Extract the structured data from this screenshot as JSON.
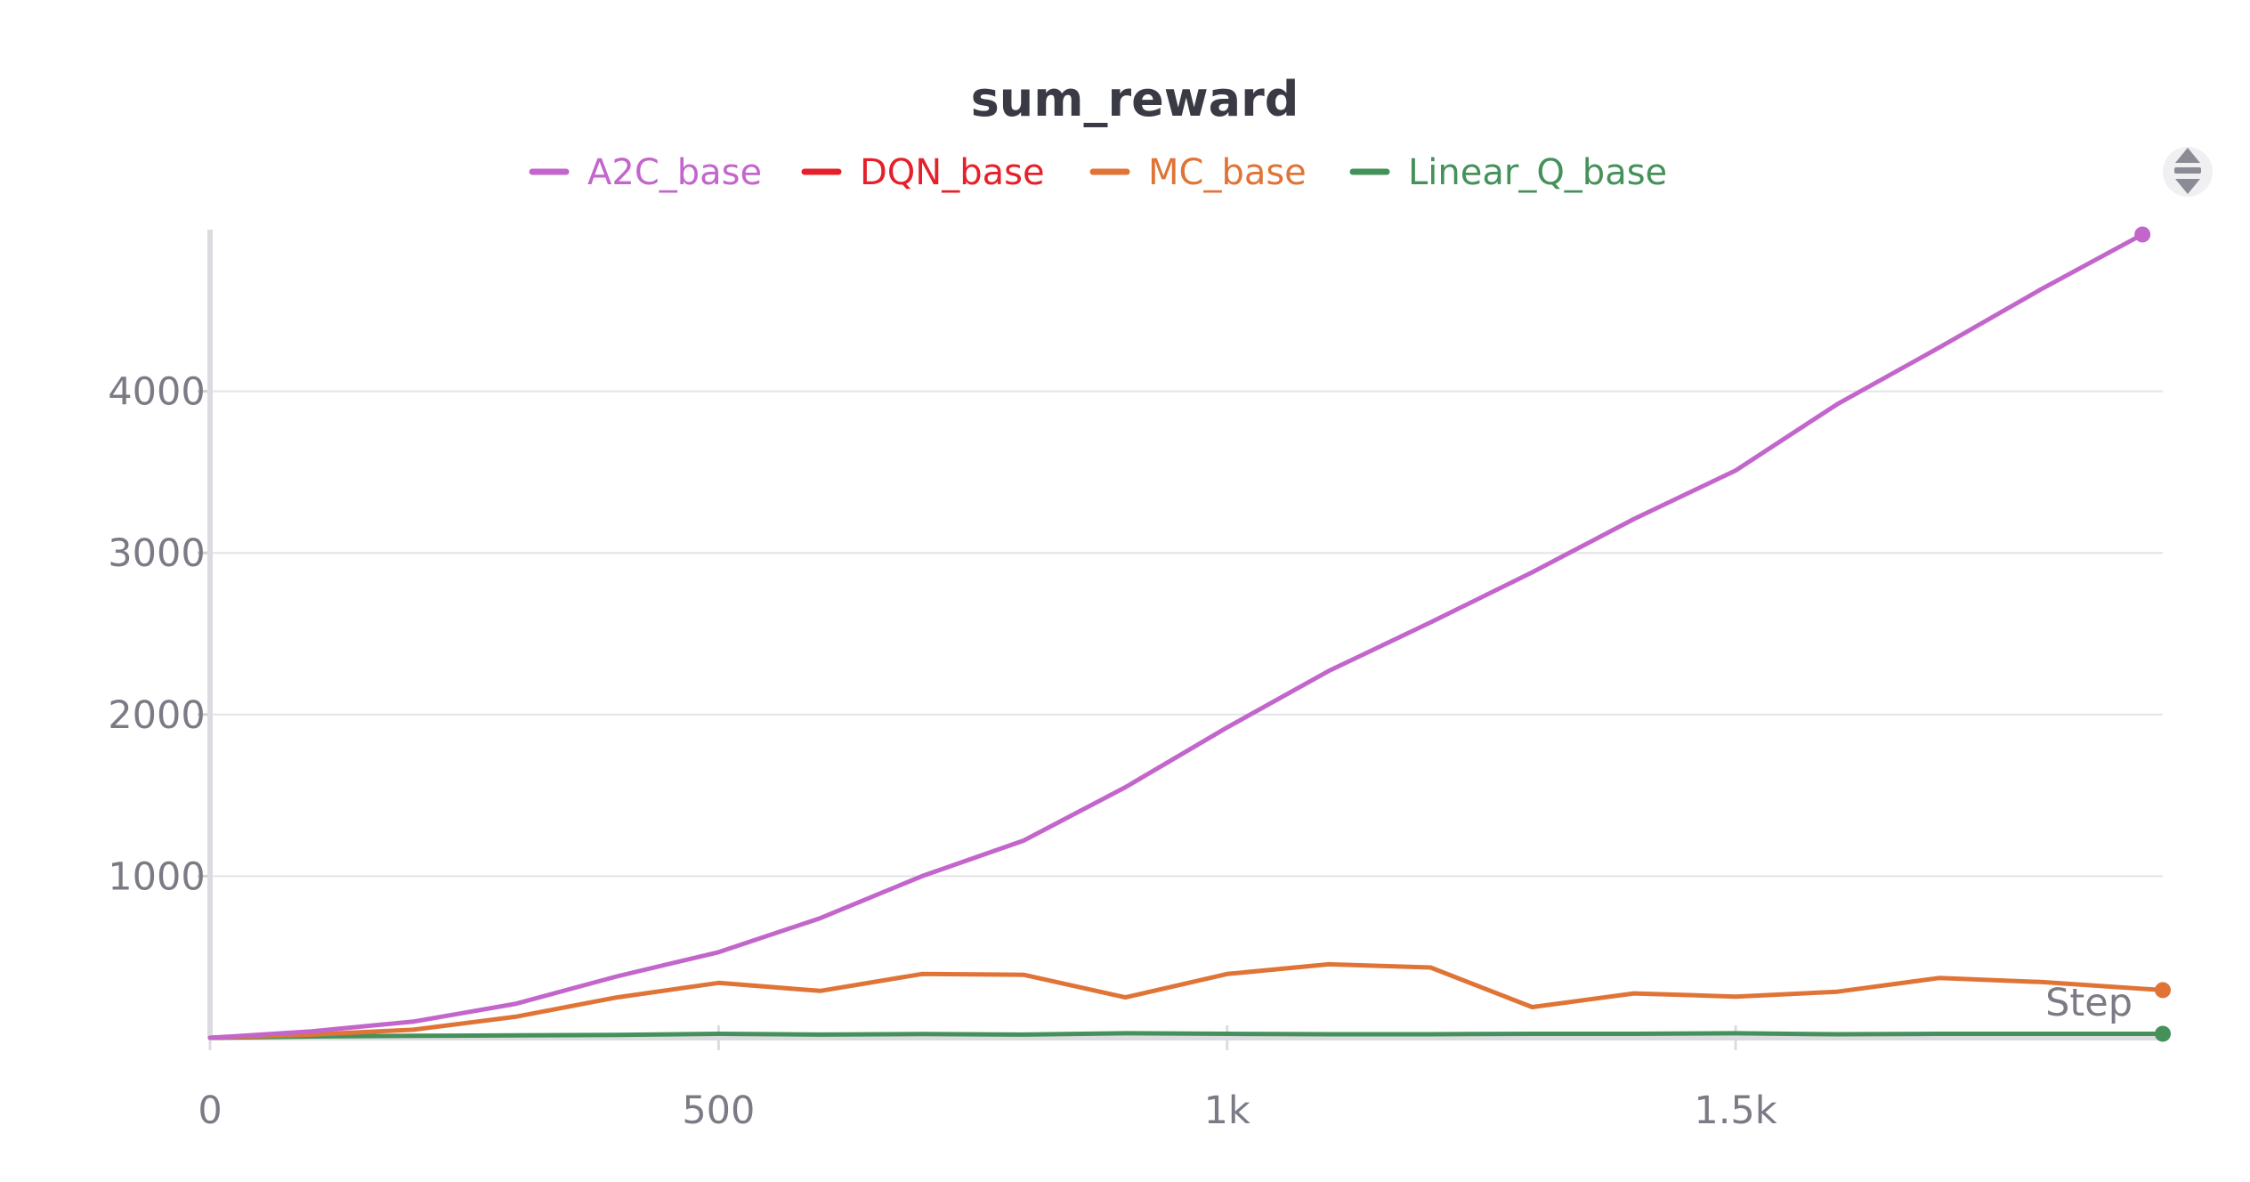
{
  "chart_data": {
    "type": "line",
    "title": "sum_reward",
    "xlabel": "Step",
    "ylabel": "",
    "x_ticks": [
      0,
      500,
      1000,
      1500
    ],
    "x_tick_labels": [
      "0",
      "500",
      "1k",
      "1.5k"
    ],
    "y_ticks": [
      1000,
      2000,
      3000,
      4000
    ],
    "y_tick_labels": [
      "1000",
      "2000",
      "3000",
      "4000"
    ],
    "xlim": [
      0,
      1920
    ],
    "ylim": [
      0,
      5000
    ],
    "grid": true,
    "legend_position": "top-center",
    "series": [
      {
        "name": "A2C_base",
        "color": "#c366cc",
        "x": [
          0,
          100,
          200,
          300,
          400,
          500,
          600,
          700,
          800,
          900,
          1000,
          1100,
          1200,
          1300,
          1400,
          1500,
          1600,
          1700,
          1800,
          1900
        ],
        "y": [
          0,
          40,
          100,
          210,
          380,
          530,
          740,
          1000,
          1220,
          1550,
          1920,
          2270,
          2570,
          2880,
          3210,
          3510,
          3920,
          4270,
          4630,
          4970
        ],
        "end_marker": true
      },
      {
        "name": "DQN_base",
        "color": "#e6202a",
        "x": [],
        "y": [],
        "end_marker": false
      },
      {
        "name": "MC_base",
        "color": "#e07437",
        "x": [
          0,
          100,
          200,
          300,
          400,
          500,
          600,
          700,
          800,
          900,
          1000,
          1100,
          1200,
          1300,
          1400,
          1500,
          1600,
          1700,
          1800,
          1920
        ],
        "y": [
          0,
          20,
          50,
          130,
          250,
          340,
          290,
          395,
          390,
          250,
          395,
          455,
          435,
          190,
          275,
          255,
          285,
          370,
          345,
          295
        ],
        "end_marker": true
      },
      {
        "name": "Linear_Q_base",
        "color": "#45915a",
        "x": [
          0,
          100,
          200,
          300,
          400,
          500,
          600,
          700,
          800,
          900,
          1000,
          1100,
          1200,
          1300,
          1400,
          1500,
          1600,
          1700,
          1800,
          1920
        ],
        "y": [
          0,
          8,
          12,
          15,
          18,
          25,
          20,
          23,
          20,
          28,
          25,
          22,
          22,
          25,
          25,
          28,
          22,
          25,
          25,
          25
        ],
        "end_marker": true
      }
    ]
  },
  "icons": {
    "legend_scroll": "up-down-arrow-icon"
  }
}
